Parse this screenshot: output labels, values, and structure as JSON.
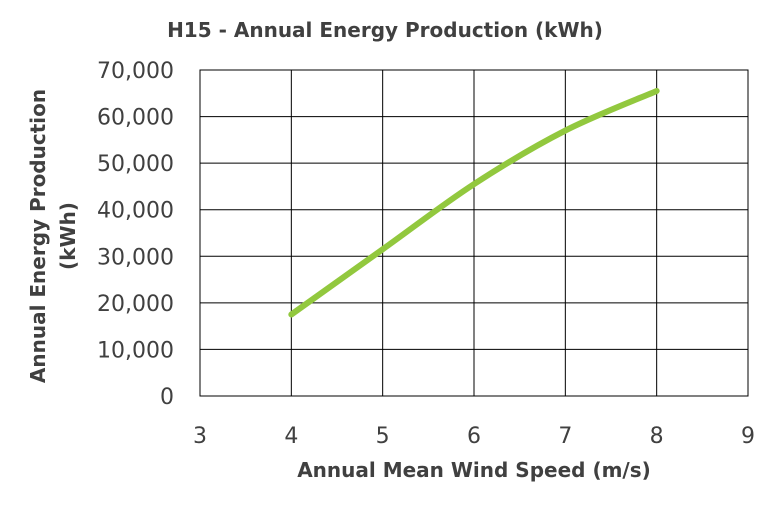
{
  "chart_data": {
    "type": "line",
    "title": "H15 - Annual Energy Production (kWh)",
    "xlabel": "Annual Mean Wind Speed (m/s)",
    "ylabel_lines": [
      "Annual Energy Production",
      "(kWh)"
    ],
    "xlim": [
      3,
      9
    ],
    "ylim": [
      0,
      70000
    ],
    "x_ticks": [
      3,
      4,
      5,
      6,
      7,
      8,
      9
    ],
    "y_ticks": [
      0,
      10000,
      20000,
      30000,
      40000,
      50000,
      60000,
      70000
    ],
    "x_tick_labels": [
      "3",
      "4",
      "5",
      "6",
      "7",
      "8",
      "9"
    ],
    "y_tick_labels": [
      "0",
      "10,000",
      "20,000",
      "30,000",
      "40,000",
      "50,000",
      "60,000",
      "70,000"
    ],
    "grid": true,
    "legend": "none",
    "series": [
      {
        "color": "#92C83E",
        "x": [
          4,
          5,
          6,
          7,
          8
        ],
        "y": [
          17500,
          31500,
          45500,
          57000,
          65500
        ]
      }
    ]
  }
}
